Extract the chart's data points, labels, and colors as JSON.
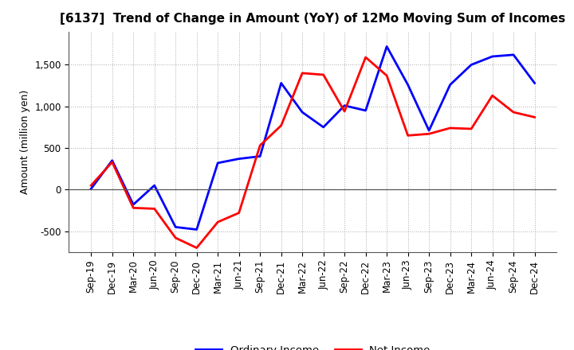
{
  "title": "[6137]  Trend of Change in Amount (YoY) of 12Mo Moving Sum of Incomes",
  "ylabel": "Amount (million yen)",
  "x_labels": [
    "Sep-19",
    "Dec-19",
    "Mar-20",
    "Jun-20",
    "Sep-20",
    "Dec-20",
    "Mar-21",
    "Jun-21",
    "Sep-21",
    "Dec-21",
    "Mar-22",
    "Jun-22",
    "Sep-22",
    "Dec-22",
    "Mar-23",
    "Jun-23",
    "Sep-23",
    "Dec-23",
    "Mar-24",
    "Jun-24",
    "Sep-24",
    "Dec-24"
  ],
  "ordinary_income": [
    10,
    350,
    -180,
    50,
    -450,
    -480,
    320,
    370,
    400,
    1280,
    930,
    750,
    1010,
    950,
    1720,
    1260,
    710,
    1260,
    1500,
    1600,
    1620,
    1280
  ],
  "net_income": [
    50,
    330,
    -220,
    -230,
    -580,
    -700,
    -390,
    -280,
    530,
    770,
    1400,
    1380,
    940,
    1590,
    1370,
    650,
    670,
    740,
    730,
    1130,
    930,
    870
  ],
  "ordinary_color": "#0000FF",
  "net_color": "#FF0000",
  "ylim": [
    -750,
    1900
  ],
  "yticks": [
    -500,
    0,
    500,
    1000,
    1500
  ],
  "background_color": "#FFFFFF",
  "grid_color": "#AAAAAA",
  "title_fontsize": 11,
  "label_fontsize": 9,
  "tick_fontsize": 8.5
}
